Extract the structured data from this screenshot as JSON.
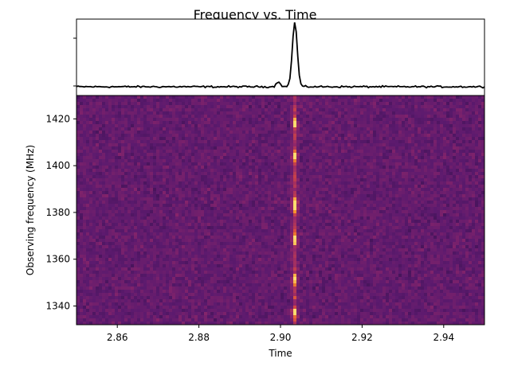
{
  "chart_data": [
    {
      "type": "line",
      "title": "Frequency vs. Time",
      "description_panel": "pulse profile",
      "xlim": [
        2.85,
        2.95
      ],
      "peak_x": 2.9035,
      "series": [
        {
          "values_note": "flat noise baseline with a single narrow peak",
          "baseline": 0,
          "peak_value": 1.0,
          "minor_bump_x": 2.8995,
          "minor_bump_value": 0.08
        }
      ],
      "yticks_present": 2
    },
    {
      "type": "heatmap",
      "xlabel": "Time",
      "ylabel": "Observing frequency (MHz)",
      "xlim": [
        2.85,
        2.95
      ],
      "ylim": [
        1332,
        1430
      ],
      "xticks": [
        2.86,
        2.88,
        2.9,
        2.92,
        2.94
      ],
      "xtick_labels": [
        "2.86",
        "2.88",
        "2.90",
        "2.92",
        "2.94"
      ],
      "yticks": [
        1340,
        1360,
        1380,
        1400,
        1420
      ],
      "ytick_labels": [
        "1340",
        "1360",
        "1380",
        "1400",
        "1420"
      ],
      "colormap": "inferno",
      "signal_x": 2.9035,
      "bright_spots_mhz": [
        1418,
        1404,
        1384,
        1382,
        1369,
        1351,
        1337
      ]
    }
  ],
  "colors": {
    "background": "#ffffff",
    "line": "#000000",
    "heatmap_base": "#5c1a6e",
    "heatmap_hot": "#f7a43a"
  }
}
